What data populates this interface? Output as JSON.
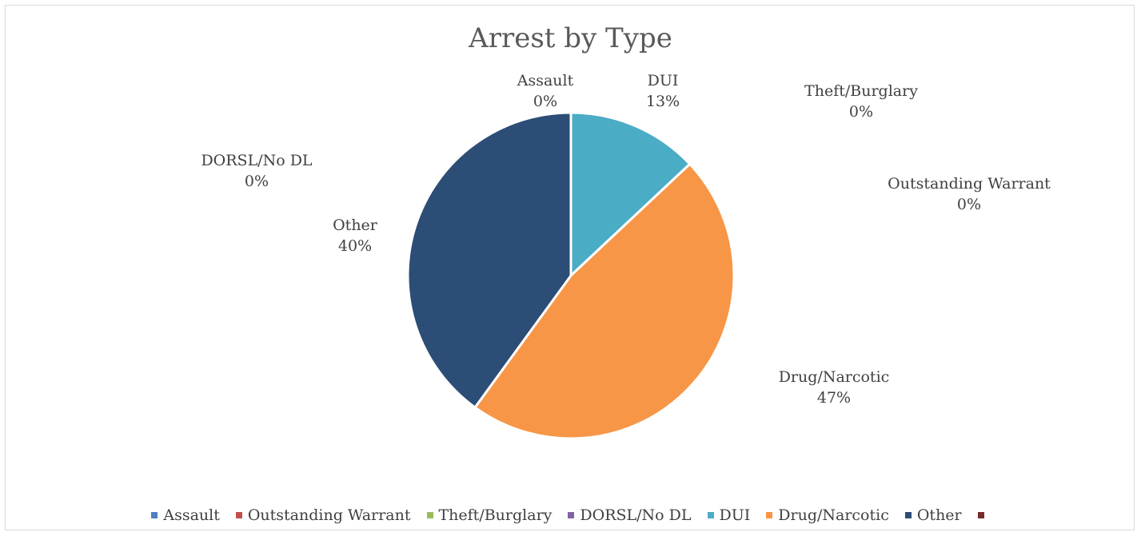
{
  "chart_data": {
    "type": "pie",
    "title": "Arrest by Type",
    "categories": [
      "Assault",
      "Outstanding Warrant",
      "Theft/Burglary",
      "DORSL/No DL",
      "DUI",
      "Drug/Narcotic",
      "Other",
      ""
    ],
    "values": [
      0,
      0,
      0,
      0,
      13,
      47,
      40,
      0
    ],
    "percent_labels": [
      "0%",
      "0%",
      "0%",
      "0%",
      "13%",
      "47%",
      "40%",
      ""
    ],
    "colors": [
      "#4f81bd",
      "#c0504d",
      "#9bbb59",
      "#8064a2",
      "#4bacc6",
      "#f79646",
      "#2c4d75",
      "#772c2a"
    ],
    "legend_position": "bottom",
    "start_angle_deg": 0,
    "direction": "clockwise"
  }
}
